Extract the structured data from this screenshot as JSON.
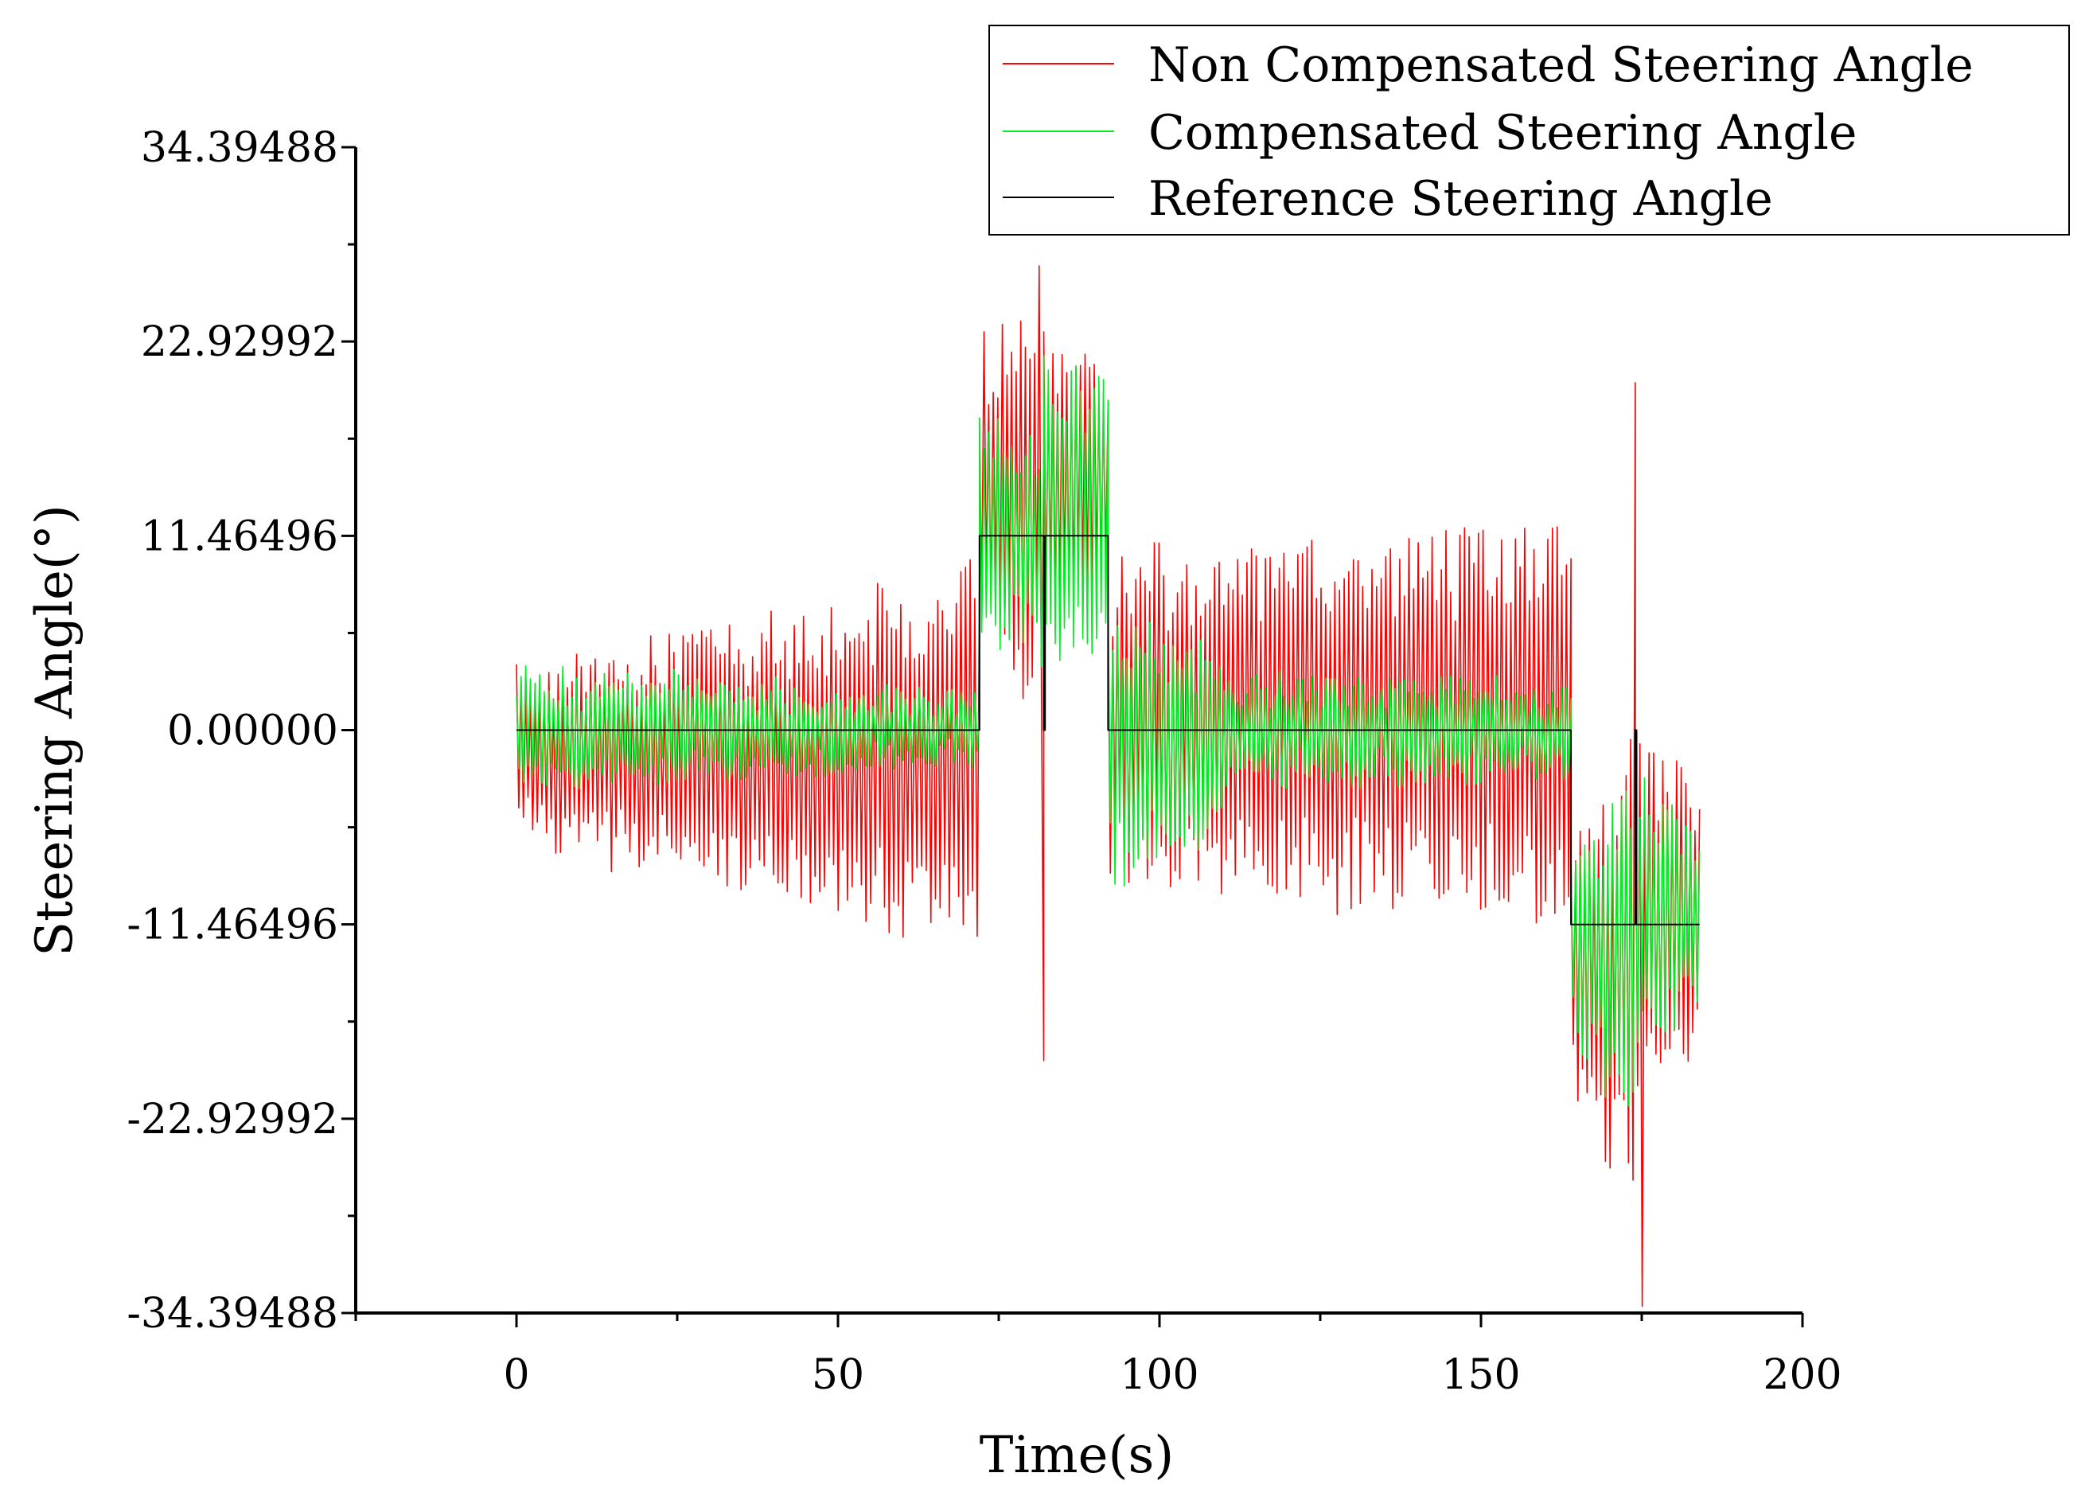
{
  "chart_data": {
    "type": "line",
    "title": "",
    "xlabel": "Time(s)",
    "ylabel": "Steering Angle(°)",
    "xlim": [
      -25,
      200
    ],
    "ylim": [
      -34.39488,
      34.39488
    ],
    "xticks": [
      {
        "value": 0,
        "label": "0"
      },
      {
        "value": 50,
        "label": "50"
      },
      {
        "value": 100,
        "label": "100"
      },
      {
        "value": 150,
        "label": "150"
      },
      {
        "value": 200,
        "label": "200"
      }
    ],
    "yticks": [
      {
        "value": 34.39488,
        "label": "34.39488"
      },
      {
        "value": 22.92992,
        "label": "22.92992"
      },
      {
        "value": 11.46496,
        "label": "11.46496"
      },
      {
        "value": 0,
        "label": "0.00000"
      },
      {
        "value": -11.46496,
        "label": "-11.46496"
      },
      {
        "value": -22.92992,
        "label": "-22.92992"
      },
      {
        "value": -34.39488,
        "label": "-34.39488"
      }
    ],
    "legend_position": "top-right",
    "series": [
      {
        "name": "Non Compensated Steering Angle",
        "color": "#ff0000",
        "style": "oscillating",
        "segments": [
          {
            "t0": 0,
            "t1": 72,
            "center": -1.5,
            "amp_start": 5,
            "amp_end": 11.5
          },
          {
            "t0": 72,
            "t1": 82,
            "center": 14,
            "amp_start": 7,
            "amp_end": 14
          },
          {
            "t0": 82,
            "t1": 92,
            "center": 15,
            "amp_start": 9,
            "amp_end": 7
          },
          {
            "t0": 92,
            "t1": 164,
            "center": 0.5,
            "amp_start": 10,
            "amp_end": 12
          },
          {
            "t0": 164,
            "t1": 174,
            "center": -14,
            "amp_start": 7,
            "amp_end": 15
          },
          {
            "t0": 174,
            "t1": 184,
            "center": -11,
            "amp_start": 12,
            "amp_end": 8
          }
        ],
        "spikes": [
          {
            "t": 72.5,
            "value": 23.5
          },
          {
            "t": 82,
            "value": -19.5
          },
          {
            "t": 174,
            "value": 20.5
          },
          {
            "t": 175,
            "value": -34
          }
        ]
      },
      {
        "name": "Compensated Steering Angle",
        "color": "#00ee22",
        "style": "oscillating",
        "segments": [
          {
            "t0": 0,
            "t1": 72,
            "center": 0,
            "amp_start": 3.5,
            "amp_end": 2
          },
          {
            "t0": 72,
            "t1": 82,
            "center": 11.5,
            "amp_start": 7,
            "amp_end": 7
          },
          {
            "t0": 82,
            "t1": 92,
            "center": 13,
            "amp_start": 10,
            "amp_end": 8
          },
          {
            "t0": 92,
            "t1": 110,
            "center": -1,
            "amp_start": 9,
            "amp_end": 5
          },
          {
            "t0": 110,
            "t1": 164,
            "center": 0,
            "amp_start": 3.5,
            "amp_end": 2.5
          },
          {
            "t0": 164,
            "t1": 174,
            "center": -13,
            "amp_start": 6,
            "amp_end": 10
          },
          {
            "t0": 174,
            "t1": 184,
            "center": -11,
            "amp_start": 8,
            "amp_end": 6
          }
        ],
        "spikes": []
      },
      {
        "name": "Reference Steering Angle",
        "color": "#000000",
        "style": "step",
        "points": [
          [
            0,
            0
          ],
          [
            72,
            0
          ],
          [
            72,
            11.46496
          ],
          [
            82,
            11.46496
          ],
          [
            82,
            0
          ],
          [
            82.2,
            0
          ],
          [
            82.2,
            11.46496
          ],
          [
            92,
            11.46496
          ],
          [
            92,
            0
          ],
          [
            164,
            0
          ],
          [
            164,
            -11.46496
          ],
          [
            174,
            -11.46496
          ],
          [
            174,
            0
          ],
          [
            174.2,
            0
          ],
          [
            174.2,
            -11.46496
          ],
          [
            184,
            -11.46496
          ]
        ]
      }
    ]
  }
}
